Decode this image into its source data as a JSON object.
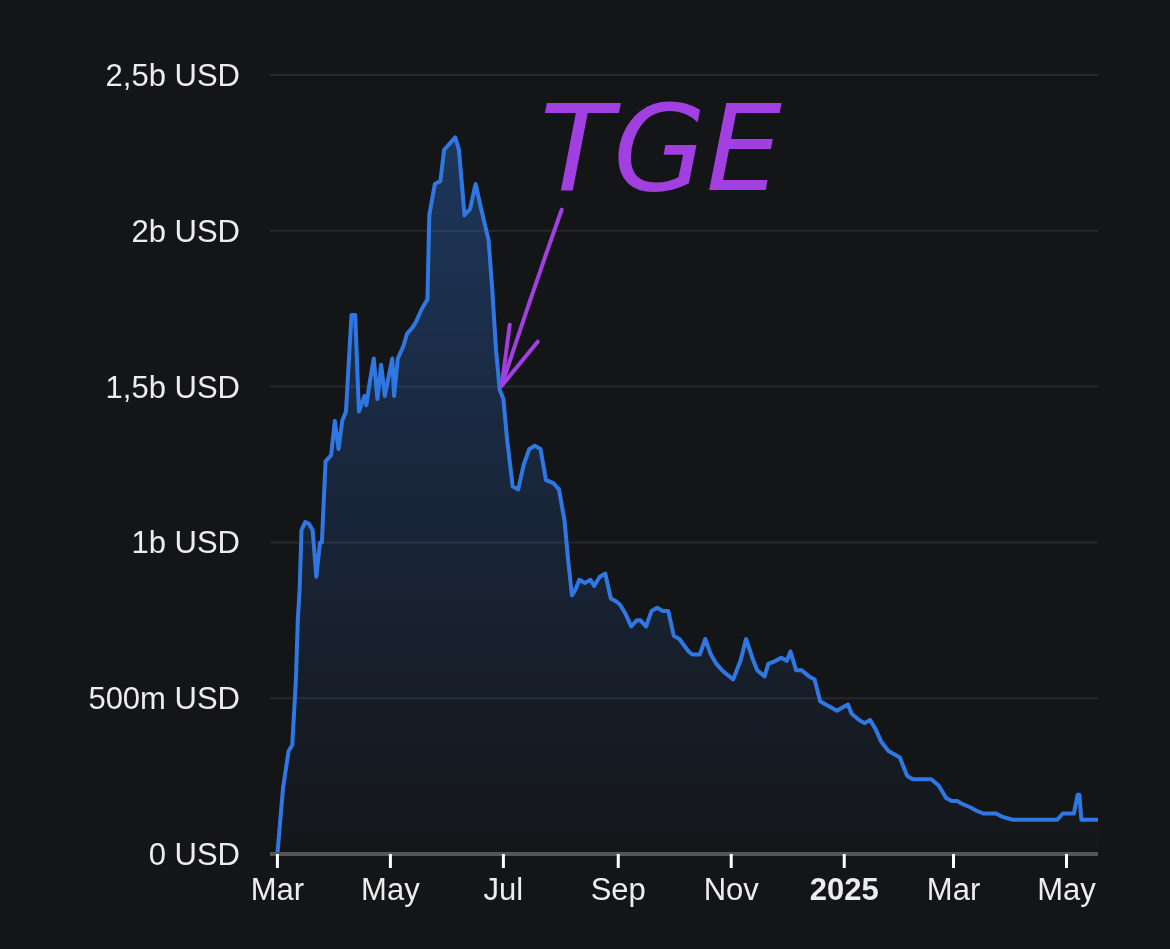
{
  "chart_data": {
    "type": "area",
    "grid": "y",
    "xlim": [
      "2024-02-26",
      "2025-05-18"
    ],
    "ylim": [
      0,
      2500000000
    ],
    "xticks": [
      {
        "value": "2024-03-01",
        "label": "Mar"
      },
      {
        "value": "2024-05-01",
        "label": "May"
      },
      {
        "value": "2024-07-01",
        "label": "Jul"
      },
      {
        "value": "2024-09-01",
        "label": "Sep"
      },
      {
        "value": "2024-11-01",
        "label": "Nov"
      },
      {
        "value": "2025-01-01",
        "label": "2025"
      },
      {
        "value": "2025-03-01",
        "label": "Mar"
      },
      {
        "value": "2025-05-01",
        "label": "May"
      }
    ],
    "yticks": [
      {
        "value": 0,
        "label": "0 USD"
      },
      {
        "value": 500000000,
        "label": "500m USD"
      },
      {
        "value": 1000000000,
        "label": "1b USD"
      },
      {
        "value": 1500000000,
        "label": "1,5b USD"
      },
      {
        "value": 2000000000,
        "label": "2b USD"
      },
      {
        "value": 2500000000,
        "label": "2,5b USD"
      }
    ],
    "annotations": [
      {
        "text": "TGE",
        "x": "2024-06-29",
        "y": 1490000000
      }
    ],
    "x": [
      "2024-02-27",
      "2024-03-01",
      "2024-03-04",
      "2024-03-07",
      "2024-03-09",
      "2024-03-11",
      "2024-03-12",
      "2024-03-13",
      "2024-03-14",
      "2024-03-16",
      "2024-03-18",
      "2024-03-20",
      "2024-03-22",
      "2024-03-24",
      "2024-03-25",
      "2024-03-27",
      "2024-03-30",
      "2024-04-01",
      "2024-04-03",
      "2024-04-05",
      "2024-04-07",
      "2024-04-10",
      "2024-04-12",
      "2024-04-14",
      "2024-04-17",
      "2024-04-18",
      "2024-04-20",
      "2024-04-22",
      "2024-04-24",
      "2024-04-26",
      "2024-04-28",
      "2024-05-02",
      "2024-05-03",
      "2024-05-05",
      "2024-05-08",
      "2024-05-10",
      "2024-05-13",
      "2024-05-15",
      "2024-05-18",
      "2024-05-21",
      "2024-05-22",
      "2024-05-25",
      "2024-05-28",
      "2024-05-30",
      "2024-06-02",
      "2024-06-05",
      "2024-06-07",
      "2024-06-10",
      "2024-06-13",
      "2024-06-16",
      "2024-06-19",
      "2024-06-23",
      "2024-06-25",
      "2024-06-27",
      "2024-06-29",
      "2024-07-01",
      "2024-07-03",
      "2024-07-06",
      "2024-07-09",
      "2024-07-12",
      "2024-07-15",
      "2024-07-18",
      "2024-07-21",
      "2024-07-24",
      "2024-07-28",
      "2024-07-31",
      "2024-08-03",
      "2024-08-05",
      "2024-08-07",
      "2024-08-09",
      "2024-08-11",
      "2024-08-14",
      "2024-08-17",
      "2024-08-19",
      "2024-08-22",
      "2024-08-25",
      "2024-08-28",
      "2024-08-31",
      "2024-09-02",
      "2024-09-05",
      "2024-09-08",
      "2024-09-11",
      "2024-09-13",
      "2024-09-16",
      "2024-09-19",
      "2024-09-22",
      "2024-09-25",
      "2024-09-28",
      "2024-10-01",
      "2024-10-04",
      "2024-10-09",
      "2024-10-11",
      "2024-10-15",
      "2024-10-18",
      "2024-10-21",
      "2024-10-24",
      "2024-10-27",
      "2024-11-02",
      "2024-11-06",
      "2024-11-09",
      "2024-11-13",
      "2024-11-15",
      "2024-11-19",
      "2024-11-21",
      "2024-11-25",
      "2024-11-28",
      "2024-12-01",
      "2024-12-03",
      "2024-12-06",
      "2024-12-09",
      "2024-12-13",
      "2024-12-16",
      "2024-12-19",
      "2024-12-22",
      "2024-12-25",
      "2024-12-28",
      "2024-12-31",
      "2025-01-03",
      "2025-01-05",
      "2025-01-09",
      "2025-01-12",
      "2025-01-15",
      "2025-01-18",
      "2025-01-21",
      "2025-01-25",
      "2025-01-28",
      "2025-01-31",
      "2025-02-04",
      "2025-02-07",
      "2025-02-11",
      "2025-02-14",
      "2025-02-17",
      "2025-02-21",
      "2025-02-25",
      "2025-02-28",
      "2025-03-03",
      "2025-03-06",
      "2025-03-10",
      "2025-03-13",
      "2025-03-17",
      "2025-03-21",
      "2025-03-24",
      "2025-03-27",
      "2025-04-02",
      "2025-04-06",
      "2025-04-11",
      "2025-04-17",
      "2025-04-22",
      "2025-04-26",
      "2025-04-29",
      "2025-05-02",
      "2025-05-05",
      "2025-05-07",
      "2025-05-08",
      "2025-05-09",
      "2025-05-18"
    ],
    "series": [
      {
        "color": "#2f78e4",
        "values": [
          0,
          0,
          210000000,
          330000000,
          350000000,
          560000000,
          750000000,
          850000000,
          1040000000,
          1065000000,
          1060000000,
          1040000000,
          890000000,
          1000000000,
          1000000000,
          1260000000,
          1280000000,
          1390000000,
          1300000000,
          1390000000,
          1420000000,
          1730000000,
          1730000000,
          1420000000,
          1470000000,
          1440000000,
          1520000000,
          1590000000,
          1460000000,
          1570000000,
          1470000000,
          1590000000,
          1470000000,
          1590000000,
          1630000000,
          1670000000,
          1690000000,
          1710000000,
          1750000000,
          1780000000,
          2050000000,
          2150000000,
          2160000000,
          2260000000,
          2280000000,
          2300000000,
          2260000000,
          2050000000,
          2070000000,
          2150000000,
          2070000000,
          1970000000,
          1810000000,
          1620000000,
          1490000000,
          1460000000,
          1330000000,
          1180000000,
          1170000000,
          1250000000,
          1300000000,
          1310000000,
          1300000000,
          1200000000,
          1190000000,
          1170000000,
          1070000000,
          940000000,
          830000000,
          850000000,
          880000000,
          870000000,
          880000000,
          860000000,
          890000000,
          900000000,
          820000000,
          810000000,
          800000000,
          770000000,
          730000000,
          750000000,
          750000000,
          730000000,
          780000000,
          790000000,
          780000000,
          780000000,
          700000000,
          690000000,
          650000000,
          640000000,
          640000000,
          690000000,
          640000000,
          610000000,
          590000000,
          560000000,
          620000000,
          690000000,
          620000000,
          590000000,
          570000000,
          610000000,
          620000000,
          630000000,
          620000000,
          650000000,
          590000000,
          590000000,
          570000000,
          560000000,
          490000000,
          480000000,
          470000000,
          460000000,
          470000000,
          480000000,
          450000000,
          430000000,
          420000000,
          430000000,
          400000000,
          360000000,
          330000000,
          320000000,
          310000000,
          250000000,
          240000000,
          240000000,
          240000000,
          240000000,
          220000000,
          180000000,
          170000000,
          170000000,
          160000000,
          150000000,
          140000000,
          130000000,
          130000000,
          130000000,
          120000000,
          110000000,
          110000000,
          110000000,
          110000000,
          110000000,
          110000000,
          130000000,
          130000000,
          130000000,
          190000000,
          190000000,
          110000000,
          110000000
        ]
      }
    ]
  }
}
